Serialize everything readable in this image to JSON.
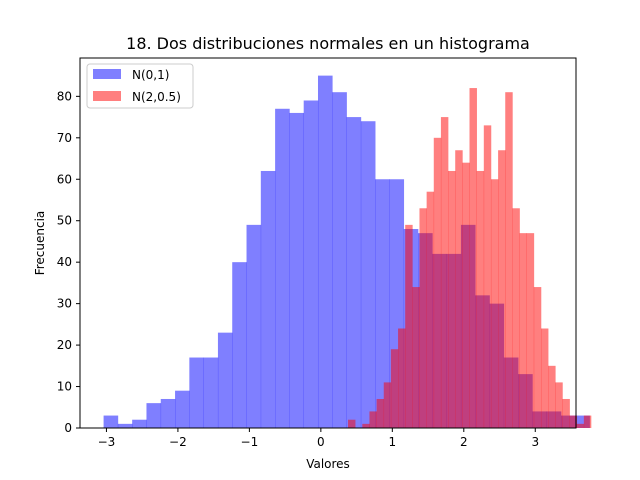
{
  "chart_data": {
    "type": "bar",
    "title": "18. Dos distribuciones normales en un histograma",
    "xlabel": "Valores",
    "ylabel": "Frecuencia",
    "xlim": [
      -3.37,
      3.57
    ],
    "ylim": [
      0,
      89.25
    ],
    "xticks": [
      -3,
      -2,
      -1,
      0,
      1,
      2,
      3
    ],
    "yticks": [
      0,
      10,
      20,
      30,
      40,
      50,
      60,
      70,
      80
    ],
    "grid": false,
    "legend_position": "top-left",
    "series": [
      {
        "name": "N(0,1)",
        "color": "#0000ff",
        "alpha": 0.5,
        "bin_width": 0.2,
        "bin_edges_start": -3.04,
        "counts": [
          3,
          1,
          2,
          6,
          7,
          9,
          17,
          17,
          23,
          40,
          49,
          62,
          77,
          76,
          79,
          85,
          81,
          75,
          74,
          60,
          60,
          48,
          47,
          42,
          42,
          49,
          32,
          30,
          17,
          13,
          4,
          4,
          3,
          3
        ]
      },
      {
        "name": "N(2,0.5)",
        "color": "#ff0000",
        "alpha": 0.5,
        "bin_width": 0.1,
        "bin_edges_start": 0.38,
        "counts": [
          2,
          0,
          1,
          4,
          7,
          11,
          19,
          24,
          49,
          34,
          53,
          57,
          70,
          75,
          62,
          67,
          64,
          82,
          62,
          73,
          60,
          67,
          81,
          53,
          47,
          47,
          34,
          24,
          15,
          11,
          7,
          3,
          1,
          3
        ]
      }
    ]
  }
}
